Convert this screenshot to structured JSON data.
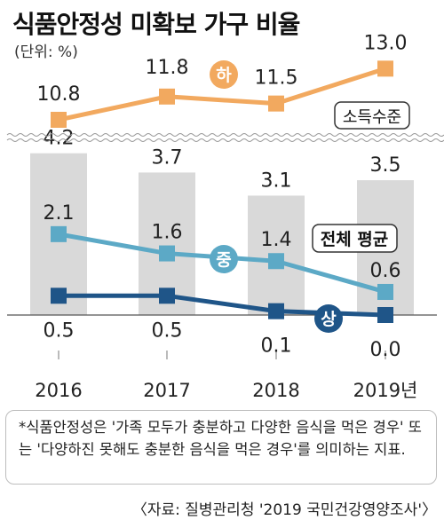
{
  "title": "식품안정성 미확보 가구 비율",
  "unit": "(단위: %)",
  "note": "*식품안정성은 '가족 모두가 충분하고 다양한 음식을 먹은 경우' 또는 '다양하진 못해도 충분한 음식을 먹은 경우'를 의미하는 지표.",
  "source": "〈자료: 질병관리청 '2019 국민건강영양조사'〉",
  "colors": {
    "bar": "#d9d9d9",
    "low": "#f2a95f",
    "mid": "#5ca9c6",
    "high": "#1f5588"
  },
  "chart_data": {
    "type": "bar",
    "categories": [
      "2016",
      "2017",
      "2018",
      "2019년"
    ],
    "bar_series": {
      "name": "전체 평균",
      "values": [
        4.2,
        3.7,
        3.1,
        3.5
      ]
    },
    "line_series": [
      {
        "name": "하",
        "values": [
          0.5,
          0.5,
          0.1,
          0.0
        ],
        "group": "소득수준",
        "color_key": "high",
        "label_index": 3
      },
      {
        "name": "중",
        "values": [
          2.1,
          1.6,
          1.4,
          0.6
        ],
        "group": "소득수준",
        "color_key": "mid",
        "label_index": 3
      },
      {
        "name": "상",
        "values": [
          10.8,
          11.8,
          11.5,
          13.0
        ],
        "group": "소득수준",
        "color_key": "low",
        "label_index": 1
      }
    ],
    "legend_labels": [
      "소득수준",
      "전체 평균"
    ],
    "axis_break": true,
    "grid": false
  }
}
